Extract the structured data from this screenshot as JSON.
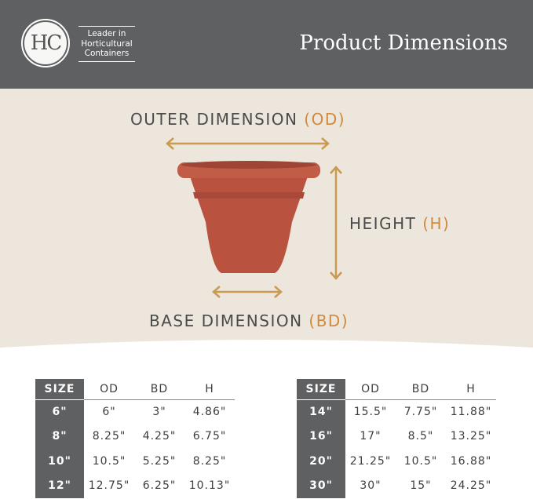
{
  "header": {
    "logo": "HC",
    "tagline": [
      "Leader in",
      "Horticultural",
      "Containers"
    ],
    "title": "Product Dimensions"
  },
  "diagram": {
    "outer": {
      "text": "OUTER DIMENSION",
      "abbr": "(OD)"
    },
    "height": {
      "text": "HEIGHT",
      "abbr": "(H)"
    },
    "base": {
      "text": "BASE DIMENSION",
      "abbr": "(BD)"
    },
    "colors": {
      "pot": "#b9533f",
      "arrow": "#c99a50",
      "accent": "#d08a3a",
      "header": "#5f6062"
    }
  },
  "tables": [
    {
      "headers": [
        "SIZE",
        "OD",
        "BD",
        "H"
      ],
      "rows": [
        [
          "6\"",
          "6\"",
          "3\"",
          "4.86\""
        ],
        [
          "8\"",
          "8.25\"",
          "4.25\"",
          "6.75\""
        ],
        [
          "10\"",
          "10.5\"",
          "5.25\"",
          "8.25\""
        ],
        [
          "12\"",
          "12.75\"",
          "6.25\"",
          "10.13\""
        ]
      ]
    },
    {
      "headers": [
        "SIZE",
        "OD",
        "BD",
        "H"
      ],
      "rows": [
        [
          "14\"",
          "15.5\"",
          "7.75\"",
          "11.88\""
        ],
        [
          "16\"",
          "17\"",
          "8.5\"",
          "13.25\""
        ],
        [
          "20\"",
          "21.25\"",
          "10.5\"",
          "16.88\""
        ],
        [
          "30\"",
          "30\"",
          "15\"",
          "24.25\""
        ]
      ]
    }
  ]
}
